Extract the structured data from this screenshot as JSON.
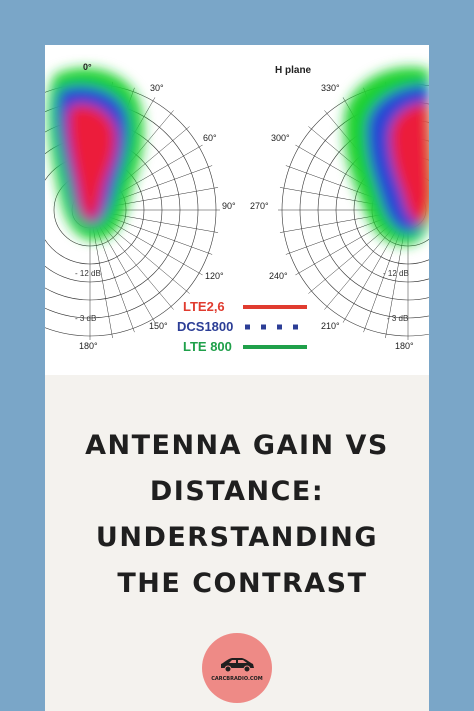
{
  "diagram": {
    "left_chart": {
      "angle_labels": [
        "0°",
        "30°",
        "60°",
        "90°",
        "120°",
        "150°",
        "180°"
      ],
      "db_labels": [
        "- 12 dB",
        "- 3 dB"
      ]
    },
    "right_chart": {
      "title": "H plane",
      "angle_labels": [
        "330°",
        "300°",
        "270°",
        "240°",
        "210°",
        "180°"
      ],
      "db_labels": [
        "- 12 dB",
        "- 3 dB"
      ]
    },
    "legend": [
      {
        "label": "LTE2,6",
        "color": "#e03b2f",
        "style": "solid"
      },
      {
        "label": "DCS1800",
        "color": "#2c3e96",
        "style": "dotted"
      },
      {
        "label": "LTE 800",
        "color": "#1fa04a",
        "style": "solid"
      }
    ],
    "heatmap_colors": {
      "outer": "#1fd12f",
      "middle": "#2845d6",
      "core": "#ec1c3a"
    }
  },
  "title_lines": [
    "ANTENNA GAIN VS",
    "DISTANCE:",
    "UNDERSTANDING",
    " THE CONTRAST"
  ],
  "badge": {
    "icon": "car-icon",
    "text": "CARCBRADIO.COM"
  }
}
